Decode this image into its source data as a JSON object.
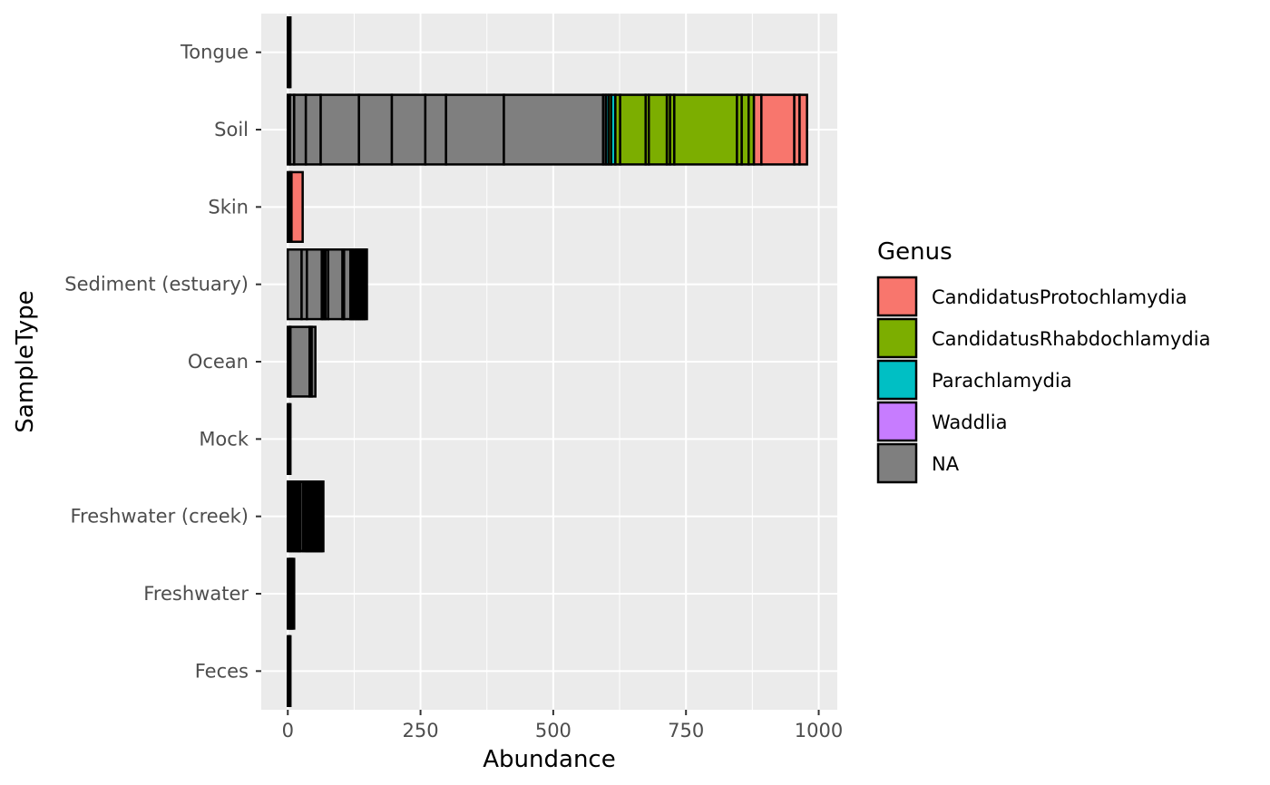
{
  "chart_data": {
    "type": "bar",
    "orientation": "horizontal",
    "stacked": true,
    "xlabel": "Abundance",
    "ylabel": "SampleType",
    "xlim": [
      -50,
      1035
    ],
    "xticks": [
      0,
      250,
      500,
      750,
      1000
    ],
    "categories": [
      "Feces",
      "Freshwater",
      "Freshwater (creek)",
      "Mock",
      "Ocean",
      "Sediment (estuary)",
      "Skin",
      "Soil",
      "Tongue"
    ],
    "grid": true,
    "legend": {
      "title": "Genus",
      "position": "right",
      "entries": [
        {
          "label": "CandidatusProtochlamydia",
          "color": "#F8766D"
        },
        {
          "label": "CandidatusRhabdochlamydia",
          "color": "#7CAE00"
        },
        {
          "label": "Parachlamydia",
          "color": "#00BFC4"
        },
        {
          "label": "Waddlia",
          "color": "#C77CFF"
        },
        {
          "label": "NA",
          "color": "#7F7F7F"
        }
      ]
    },
    "stacks": [
      {
        "category": "Feces",
        "segments": [
          {
            "genus": "NA",
            "value": 2
          },
          {
            "genus": "NA",
            "value": 1
          },
          {
            "genus": "NA",
            "value": 2
          }
        ]
      },
      {
        "category": "Freshwater",
        "segments": [
          {
            "genus": "NA",
            "value": 2
          },
          {
            "genus": "NA",
            "value": 2
          },
          {
            "genus": "NA",
            "value": 2
          },
          {
            "genus": "NA",
            "value": 2
          },
          {
            "genus": "NA",
            "value": 2
          },
          {
            "genus": "NA",
            "value": 2
          }
        ]
      },
      {
        "category": "Freshwater (creek)",
        "segments": [
          {
            "genus": "NA",
            "value": 3
          },
          {
            "genus": "NA",
            "value": 3
          },
          {
            "genus": "NA",
            "value": 3
          },
          {
            "genus": "NA",
            "value": 3
          },
          {
            "genus": "NA",
            "value": 3
          },
          {
            "genus": "NA",
            "value": 3
          },
          {
            "genus": "NA",
            "value": 2
          },
          {
            "genus": "NA",
            "value": 2
          },
          {
            "genus": "NA",
            "value": 2
          },
          {
            "genus": "NA",
            "value": 5
          },
          {
            "genus": "NA",
            "value": 4
          },
          {
            "genus": "NA",
            "value": 2
          },
          {
            "genus": "NA",
            "value": 2
          },
          {
            "genus": "NA",
            "value": 2
          },
          {
            "genus": "NA",
            "value": 2
          },
          {
            "genus": "NA",
            "value": 2
          },
          {
            "genus": "NA",
            "value": 2
          },
          {
            "genus": "NA",
            "value": 2
          },
          {
            "genus": "NA",
            "value": 2
          },
          {
            "genus": "NA",
            "value": 2
          },
          {
            "genus": "NA",
            "value": 2
          },
          {
            "genus": "NA",
            "value": 2
          },
          {
            "genus": "NA",
            "value": 2
          },
          {
            "genus": "NA",
            "value": 2
          },
          {
            "genus": "NA",
            "value": 2
          },
          {
            "genus": "NA",
            "value": 2
          },
          {
            "genus": "NA",
            "value": 2
          },
          {
            "genus": "NA",
            "value": 2
          }
        ]
      },
      {
        "category": "Mock",
        "segments": [
          {
            "genus": "NA",
            "value": 2
          },
          {
            "genus": "NA",
            "value": 1
          },
          {
            "genus": "NA",
            "value": 2
          }
        ]
      },
      {
        "category": "Ocean",
        "segments": [
          {
            "genus": "NA",
            "value": 3
          },
          {
            "genus": "NA",
            "value": 2
          },
          {
            "genus": "NA",
            "value": 36
          },
          {
            "genus": "NA",
            "value": 4
          },
          {
            "genus": "NA",
            "value": 7
          }
        ]
      },
      {
        "category": "Sediment (estuary)",
        "segments": [
          {
            "genus": "NA",
            "value": 26
          },
          {
            "genus": "NA",
            "value": 10
          },
          {
            "genus": "NA",
            "value": 28
          },
          {
            "genus": "NA",
            "value": 3
          },
          {
            "genus": "NA",
            "value": 4
          },
          {
            "genus": "NA",
            "value": 5
          },
          {
            "genus": "NA",
            "value": 27
          },
          {
            "genus": "NA",
            "value": 3
          },
          {
            "genus": "NA",
            "value": 12
          },
          {
            "genus": "NA",
            "value": 3
          },
          {
            "genus": "NA",
            "value": 3
          },
          {
            "genus": "NA",
            "value": 3
          },
          {
            "genus": "NA",
            "value": 3
          },
          {
            "genus": "NA",
            "value": 3
          },
          {
            "genus": "NA",
            "value": 3
          },
          {
            "genus": "NA",
            "value": 3
          },
          {
            "genus": "NA",
            "value": 3
          },
          {
            "genus": "NA",
            "value": 3
          },
          {
            "genus": "NA",
            "value": 4
          }
        ]
      },
      {
        "category": "Skin",
        "segments": [
          {
            "genus": "NA",
            "value": 3
          },
          {
            "genus": "NA",
            "value": 2
          },
          {
            "genus": "NA",
            "value": 2
          },
          {
            "genus": "CandidatusProtochlamydia",
            "value": 21
          }
        ]
      },
      {
        "category": "Soil",
        "segments": [
          {
            "genus": "NA",
            "value": 4
          },
          {
            "genus": "NA",
            "value": 8
          },
          {
            "genus": "NA",
            "value": 22
          },
          {
            "genus": "NA",
            "value": 28
          },
          {
            "genus": "NA",
            "value": 72
          },
          {
            "genus": "NA",
            "value": 62
          },
          {
            "genus": "NA",
            "value": 63
          },
          {
            "genus": "NA",
            "value": 39
          },
          {
            "genus": "NA",
            "value": 109
          },
          {
            "genus": "NA",
            "value": 187
          },
          {
            "genus": "NA",
            "value": 5
          },
          {
            "genus": "Parachlamydia",
            "value": 5
          },
          {
            "genus": "CandidatusRhabdochlamydia",
            "value": 5
          },
          {
            "genus": "Parachlamydia",
            "value": 8
          },
          {
            "genus": "CandidatusRhabdochlamydia",
            "value": 9
          },
          {
            "genus": "CandidatusRhabdochlamydia",
            "value": 48
          },
          {
            "genus": "CandidatusRhabdochlamydia",
            "value": 6
          },
          {
            "genus": "CandidatusRhabdochlamydia",
            "value": 34
          },
          {
            "genus": "CandidatusRhabdochlamydia",
            "value": 6
          },
          {
            "genus": "CandidatusRhabdochlamydia",
            "value": 8
          },
          {
            "genus": "CandidatusRhabdochlamydia",
            "value": 118
          },
          {
            "genus": "CandidatusRhabdochlamydia",
            "value": 9
          },
          {
            "genus": "CandidatusRhabdochlamydia",
            "value": 13
          },
          {
            "genus": "CandidatusRhabdochlamydia",
            "value": 10
          },
          {
            "genus": "CandidatusProtochlamydia",
            "value": 14
          },
          {
            "genus": "CandidatusProtochlamydia",
            "value": 62
          },
          {
            "genus": "CandidatusProtochlamydia",
            "value": 10
          },
          {
            "genus": "CandidatusProtochlamydia",
            "value": 14
          }
        ]
      },
      {
        "category": "Tongue",
        "segments": [
          {
            "genus": "NA",
            "value": 2
          },
          {
            "genus": "NA",
            "value": 1
          },
          {
            "genus": "NA",
            "value": 2
          }
        ]
      }
    ]
  }
}
